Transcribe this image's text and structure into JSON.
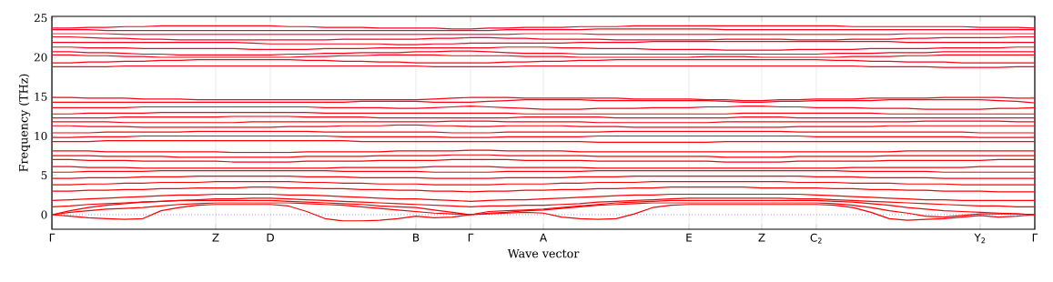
{
  "chart_data": {
    "type": "line",
    "xlabel": "Wave vector",
    "ylabel": "Frequency (THz)",
    "categories": [
      "Γ",
      null,
      null,
      null,
      null,
      null,
      null,
      null,
      null,
      "Z",
      null,
      null,
      "D",
      null,
      null,
      null,
      null,
      null,
      null,
      null,
      "B",
      null,
      null,
      "Γ",
      null,
      null,
      null,
      "A",
      null,
      null,
      null,
      null,
      null,
      null,
      null,
      "E",
      null,
      null,
      null,
      "Z",
      null,
      null,
      "C$_{2}$",
      null,
      null,
      null,
      null,
      null,
      null,
      null,
      null,
      "Y$_{2}$",
      null,
      null,
      "Γ"
    ],
    "ylim": [
      -1.85,
      25.2
    ],
    "yticks": [
      0,
      5,
      10,
      15,
      20,
      25
    ],
    "grid": "x",
    "ref_lines": [
      {
        "axis": "y",
        "value": 0,
        "color": "#0000ff",
        "line_style": "dotted"
      }
    ],
    "series": [
      {
        "color": "#ff0000",
        "values": [
          0,
          -0.2,
          -0.4,
          -0.5,
          -0.6,
          -0.5,
          0.5,
          0.9,
          1.2,
          1.3,
          1.3,
          1.3,
          1.3,
          1.1,
          0.4,
          -0.5,
          -0.8,
          -0.8,
          -0.7,
          -0.5,
          -0.2,
          -0.4,
          -0.3,
          0,
          0.1,
          0.2,
          0.3,
          0.2,
          -0.3,
          -0.5,
          -0.6,
          -0.5,
          0.1,
          0.9,
          1.2,
          1.3,
          1.3,
          1.3,
          1.3,
          1.3,
          1.3,
          1.3,
          1.3,
          1.2,
          0.9,
          0.3,
          -0.5,
          -0.7,
          -0.6,
          -0.5,
          -0.3,
          -0.1,
          -0.3,
          -0.2,
          0
        ]
      },
      {
        "color": "#ff0001",
        "values": [
          0,
          0.3,
          0.5,
          0.7,
          0.8,
          0.9,
          1.1,
          1.3,
          1.4,
          1.5,
          1.5,
          1.5,
          1.5,
          1.5,
          1.4,
          1.3,
          1.2,
          1.0,
          0.8,
          0.6,
          0.4,
          0.2,
          0.1,
          0,
          0.2,
          0.3,
          0.5,
          0.6,
          0.8,
          1.0,
          1.2,
          1.3,
          1.4,
          1.5,
          1.5,
          1.5,
          1.5,
          1.5,
          1.5,
          1.5,
          1.5,
          1.5,
          1.5,
          1.4,
          1.2,
          0.9,
          0.5,
          0.2,
          -0.2,
          -0.3,
          -0.1,
          0.1,
          0.1,
          0.1,
          0
        ]
      },
      {
        "color": "#ff0002",
        "values": [
          0,
          0.5,
          0.9,
          1.2,
          1.4,
          1.6,
          1.7,
          1.8,
          1.8,
          1.8,
          1.8,
          1.8,
          1.8,
          1.7,
          1.6,
          1.5,
          1.4,
          1.3,
          1.1,
          1.0,
          0.9,
          0.6,
          0.3,
          0,
          0.4,
          0.5,
          0.6,
          0.7,
          0.9,
          1.1,
          1.3,
          1.5,
          1.6,
          1.7,
          1.8,
          1.8,
          1.8,
          1.8,
          1.8,
          1.8,
          1.8,
          1.8,
          1.8,
          1.7,
          1.6,
          1.4,
          1.2,
          0.9,
          0.7,
          0.5,
          0.4,
          0.3,
          0.2,
          0.1,
          0
        ]
      },
      {
        "color": "#ff0003",
        "values": [
          1.0,
          1.1,
          1.3,
          1.4,
          1.5,
          1.6,
          1.7,
          1.8,
          1.9,
          2.0,
          2.0,
          2.1,
          2.1,
          2.0,
          1.9,
          1.8,
          1.7,
          1.6,
          1.5,
          1.4,
          1.3,
          1.2,
          1.1,
          1.0,
          1.1,
          1.1,
          1.2,
          1.2,
          1.3,
          1.4,
          1.6,
          1.7,
          1.8,
          1.9,
          2.0,
          2.1,
          2.1,
          2.1,
          2.1,
          2.1,
          2.1,
          2.0,
          2.0,
          1.9,
          1.8,
          1.7,
          1.6,
          1.5,
          1.4,
          1.3,
          1.2,
          1.1,
          1.1,
          1.0,
          1.0
        ]
      },
      {
        "color": "#ff0004",
        "values": [
          1.8,
          1.9,
          2.0,
          2.1,
          2.2,
          2.3,
          2.4,
          2.5,
          2.5,
          2.6,
          2.6,
          2.6,
          2.6,
          2.5,
          2.5,
          2.4,
          2.3,
          2.2,
          2.1,
          2.0,
          2.0,
          1.9,
          1.8,
          1.7,
          1.8,
          1.9,
          1.9,
          2.0,
          2.1,
          2.2,
          2.3,
          2.4,
          2.5,
          2.5,
          2.6,
          2.6,
          2.6,
          2.6,
          2.6,
          2.6,
          2.6,
          2.6,
          2.5,
          2.4,
          2.3,
          2.2,
          2.1,
          2.0,
          1.9,
          1.9,
          1.8,
          1.8,
          1.8,
          1.8,
          1.8
        ]
      },
      {
        "color": "#ff0005",
        "values": [
          3.0,
          3.0,
          3.1,
          3.1,
          3.2,
          3.2,
          3.3,
          3.3,
          3.4,
          3.4,
          3.4,
          3.5,
          3.5,
          3.4,
          3.4,
          3.3,
          3.3,
          3.2,
          3.2,
          3.1,
          3.1,
          3.0,
          3.0,
          2.9,
          3.0,
          3.0,
          3.1,
          3.1,
          3.2,
          3.2,
          3.3,
          3.3,
          3.4,
          3.4,
          3.5,
          3.5,
          3.5,
          3.5,
          3.5,
          3.4,
          3.4,
          3.4,
          3.4,
          3.3,
          3.3,
          3.2,
          3.2,
          3.1,
          3.1,
          3.0,
          3.0,
          3.0,
          2.9,
          2.9,
          2.9
        ]
      },
      {
        "color": "#ff0006",
        "values": [
          3.8,
          3.8,
          3.9,
          3.9,
          4.0,
          4.0,
          4.1,
          4.1,
          4.1,
          4.2,
          4.2,
          4.2,
          4.2,
          4.2,
          4.1,
          4.1,
          4.0,
          4.0,
          3.9,
          3.9,
          3.9,
          3.8,
          3.8,
          3.8,
          3.8,
          3.9,
          3.9,
          3.9,
          4.0,
          4.0,
          4.1,
          4.1,
          4.1,
          4.2,
          4.2,
          4.2,
          4.2,
          4.2,
          4.2,
          4.2,
          4.2,
          4.1,
          4.1,
          4.1,
          4.0,
          4.0,
          4.0,
          3.9,
          3.9,
          3.9,
          3.8,
          3.8,
          3.8,
          3.8,
          3.8
        ]
      },
      {
        "color": "#ff0007",
        "values": [
          4.6,
          4.6,
          4.7,
          4.7,
          4.7,
          4.8,
          4.8,
          4.8,
          4.9,
          4.9,
          4.9,
          4.9,
          4.9,
          4.9,
          4.8,
          4.8,
          4.8,
          4.7,
          4.7,
          4.7,
          4.7,
          4.6,
          4.6,
          4.6,
          4.6,
          4.7,
          4.7,
          4.7,
          4.7,
          4.8,
          4.8,
          4.8,
          4.9,
          4.9,
          4.9,
          4.9,
          4.9,
          4.9,
          4.9,
          4.9,
          4.9,
          4.9,
          4.8,
          4.8,
          4.8,
          4.7,
          4.7,
          4.7,
          4.7,
          4.6,
          4.6,
          4.6,
          4.6,
          4.6,
          4.6
        ]
      },
      {
        "color": "#ff0008",
        "values": [
          5.4,
          5.4,
          5.5,
          5.5,
          5.5,
          5.5,
          5.6,
          5.6,
          5.6,
          5.6,
          5.6,
          5.6,
          5.6,
          5.6,
          5.6,
          5.6,
          5.5,
          5.5,
          5.5,
          5.5,
          5.5,
          5.4,
          5.4,
          5.4,
          5.4,
          5.5,
          5.5,
          5.5,
          5.5,
          5.5,
          5.6,
          5.6,
          5.6,
          5.6,
          5.6,
          5.6,
          5.6,
          5.6,
          5.6,
          5.6,
          5.6,
          5.6,
          5.6,
          5.6,
          5.5,
          5.5,
          5.5,
          5.5,
          5.5,
          5.4,
          5.4,
          5.4,
          5.4,
          5.4,
          5.4
        ]
      },
      {
        "color": "#ff0009",
        "values": [
          6.1,
          6.1,
          6.0,
          6.0,
          6.0,
          5.9,
          5.9,
          5.9,
          5.9,
          5.9,
          5.9,
          5.9,
          5.9,
          5.9,
          5.9,
          5.9,
          6.0,
          6.0,
          6.0,
          6.0,
          6.0,
          6.1,
          6.1,
          6.1,
          6.1,
          6.0,
          6.0,
          6.0,
          6.0,
          6.0,
          5.9,
          5.9,
          5.9,
          5.9,
          5.9,
          5.9,
          5.9,
          5.9,
          5.9,
          5.9,
          5.9,
          5.9,
          5.9,
          5.9,
          6.0,
          6.0,
          6.0,
          6.0,
          6.0,
          6.0,
          6.0,
          6.1,
          6.1,
          6.1,
          6.1
        ]
      },
      {
        "color": "#ff000a",
        "values": [
          7.0,
          7.0,
          6.9,
          6.9,
          6.9,
          6.8,
          6.8,
          6.8,
          6.8,
          6.8,
          6.7,
          6.7,
          6.7,
          6.7,
          6.8,
          6.8,
          6.8,
          6.8,
          6.9,
          6.9,
          6.9,
          6.9,
          7.0,
          7.0,
          7.0,
          7.0,
          6.9,
          6.9,
          6.9,
          6.9,
          6.8,
          6.8,
          6.8,
          6.8,
          6.8,
          6.8,
          6.8,
          6.7,
          6.7,
          6.7,
          6.7,
          6.8,
          6.8,
          6.8,
          6.8,
          6.8,
          6.9,
          6.9,
          6.9,
          6.9,
          6.9,
          6.9,
          7.0,
          7.0,
          7.0
        ]
      },
      {
        "color": "#ff000b",
        "values": [
          7.5,
          7.5,
          7.5,
          7.4,
          7.4,
          7.4,
          7.4,
          7.3,
          7.3,
          7.3,
          7.3,
          7.3,
          7.3,
          7.3,
          7.4,
          7.4,
          7.4,
          7.4,
          7.5,
          7.5,
          7.5,
          7.5,
          7.6,
          7.6,
          7.6,
          7.5,
          7.5,
          7.5,
          7.5,
          7.5,
          7.4,
          7.4,
          7.4,
          7.4,
          7.4,
          7.4,
          7.4,
          7.3,
          7.3,
          7.3,
          7.3,
          7.4,
          7.4,
          7.4,
          7.4,
          7.4,
          7.5,
          7.5,
          7.5,
          7.5,
          7.5,
          7.5,
          7.5,
          7.5,
          7.5
        ]
      },
      {
        "color": "#ff000c",
        "values": [
          8.1,
          8.1,
          8.1,
          8.0,
          8.0,
          8.0,
          8.0,
          8.0,
          8.0,
          8.0,
          7.9,
          7.9,
          7.9,
          7.9,
          8.0,
          8.0,
          8.0,
          8.0,
          8.0,
          8.1,
          8.1,
          8.1,
          8.1,
          8.2,
          8.2,
          8.1,
          8.1,
          8.1,
          8.1,
          8.0,
          8.0,
          8.0,
          8.0,
          8.0,
          8.0,
          8.0,
          8.0,
          8.0,
          8.0,
          8.0,
          8.0,
          8.0,
          8.0,
          8.0,
          8.0,
          8.0,
          8.0,
          8.1,
          8.1,
          8.1,
          8.1,
          8.1,
          8.1,
          8.1,
          8.1
        ]
      },
      {
        "color": "#ff000d",
        "values": [
          9.3,
          9.3,
          9.3,
          9.4,
          9.4,
          9.4,
          9.4,
          9.4,
          9.4,
          9.4,
          9.4,
          9.4,
          9.4,
          9.4,
          9.4,
          9.4,
          9.4,
          9.3,
          9.3,
          9.3,
          9.3,
          9.3,
          9.3,
          9.3,
          9.3,
          9.3,
          9.3,
          9.3,
          9.3,
          9.3,
          9.2,
          9.2,
          9.2,
          9.2,
          9.2,
          9.2,
          9.2,
          9.3,
          9.3,
          9.3,
          9.3,
          9.3,
          9.3,
          9.3,
          9.3,
          9.3,
          9.3,
          9.3,
          9.3,
          9.3,
          9.3,
          9.3,
          9.3,
          9.3,
          9.3
        ]
      },
      {
        "color": "#ff000e",
        "values": [
          9.8,
          9.8,
          9.9,
          9.9,
          9.9,
          10.0,
          10.0,
          10.0,
          10.0,
          10.0,
          10.0,
          10.0,
          10.0,
          10.0,
          10.0,
          10.0,
          9.9,
          9.9,
          9.9,
          9.9,
          9.9,
          9.9,
          9.8,
          9.8,
          9.8,
          9.9,
          9.9,
          9.9,
          9.9,
          9.9,
          10.0,
          10.0,
          10.0,
          10.0,
          10.0,
          10.0,
          10.0,
          10.0,
          10.0,
          10.0,
          10.0,
          10.0,
          9.9,
          9.9,
          9.9,
          9.9,
          9.9,
          9.9,
          9.9,
          9.9,
          9.9,
          9.8,
          9.8,
          9.8,
          9.8
        ]
      },
      {
        "color": "#ff000f",
        "values": [
          10.4,
          10.4,
          10.4,
          10.5,
          10.5,
          10.5,
          10.5,
          10.5,
          10.6,
          10.6,
          10.6,
          10.6,
          10.6,
          10.6,
          10.6,
          10.5,
          10.5,
          10.5,
          10.5,
          10.5,
          10.5,
          10.5,
          10.4,
          10.4,
          10.4,
          10.5,
          10.5,
          10.5,
          10.5,
          10.5,
          10.5,
          10.6,
          10.6,
          10.6,
          10.6,
          10.6,
          10.6,
          10.6,
          10.6,
          10.6,
          10.6,
          10.5,
          10.5,
          10.5,
          10.5,
          10.5,
          10.5,
          10.5,
          10.5,
          10.5,
          10.5,
          10.4,
          10.4,
          10.4,
          10.4
        ]
      },
      {
        "color": "#ff0010",
        "values": [
          11.3,
          11.3,
          11.2,
          11.2,
          11.2,
          11.1,
          11.1,
          11.1,
          11.1,
          11.1,
          11.1,
          11.1,
          11.1,
          11.2,
          11.2,
          11.2,
          11.3,
          11.3,
          11.3,
          11.4,
          11.4,
          11.3,
          11.3,
          11.2,
          11.2,
          11.3,
          11.3,
          11.3,
          11.3,
          11.2,
          11.2,
          11.2,
          11.1,
          11.1,
          11.1,
          11.1,
          11.1,
          11.1,
          11.1,
          11.1,
          11.1,
          11.2,
          11.2,
          11.2,
          11.2,
          11.2,
          11.3,
          11.3,
          11.3,
          11.3,
          11.3,
          11.3,
          11.3,
          11.3,
          11.3
        ]
      },
      {
        "color": "#ff0011",
        "values": [
          11.8,
          11.8,
          11.8,
          11.8,
          11.7,
          11.7,
          11.7,
          11.7,
          11.7,
          11.7,
          11.7,
          11.8,
          11.8,
          11.8,
          11.8,
          11.8,
          11.8,
          11.8,
          11.8,
          11.8,
          11.8,
          11.8,
          11.9,
          11.9,
          11.9,
          11.8,
          11.8,
          11.8,
          11.8,
          11.8,
          11.7,
          11.7,
          11.7,
          11.7,
          11.7,
          11.7,
          11.7,
          11.8,
          11.8,
          11.8,
          11.8,
          11.8,
          11.8,
          11.8,
          11.8,
          11.8,
          11.8,
          11.8,
          11.9,
          11.9,
          11.9,
          11.9,
          11.9,
          11.8,
          11.8
        ]
      },
      {
        "color": "#ff0012",
        "values": [
          12.3,
          12.3,
          12.3,
          12.3,
          12.4,
          12.4,
          12.4,
          12.4,
          12.4,
          12.4,
          12.5,
          12.5,
          12.5,
          12.5,
          12.4,
          12.4,
          12.4,
          12.4,
          12.3,
          12.3,
          12.3,
          12.3,
          12.3,
          12.3,
          12.3,
          12.3,
          12.4,
          12.4,
          12.4,
          12.4,
          12.4,
          12.3,
          12.3,
          12.3,
          12.3,
          12.3,
          12.3,
          12.3,
          12.4,
          12.4,
          12.4,
          12.3,
          12.3,
          12.3,
          12.3,
          12.3,
          12.3,
          12.3,
          12.3,
          12.3,
          12.3,
          12.3,
          12.3,
          12.3,
          12.3
        ]
      },
      {
        "color": "#ff0013",
        "values": [
          12.8,
          12.8,
          12.9,
          12.9,
          12.9,
          12.9,
          13.0,
          13.0,
          13.0,
          13.0,
          13.0,
          13.0,
          13.0,
          13.0,
          13.0,
          12.9,
          12.9,
          12.9,
          12.9,
          12.9,
          12.9,
          12.9,
          12.9,
          12.9,
          12.9,
          12.9,
          12.8,
          12.8,
          12.8,
          12.8,
          12.8,
          12.8,
          12.8,
          12.8,
          12.8,
          12.8,
          12.8,
          12.8,
          12.9,
          12.9,
          12.9,
          12.9,
          12.9,
          12.9,
          12.9,
          12.9,
          12.8,
          12.8,
          12.8,
          12.8,
          12.8,
          12.8,
          12.8,
          12.8,
          12.8
        ]
      },
      {
        "color": "#ff0014",
        "values": [
          13.6,
          13.6,
          13.6,
          13.6,
          13.6,
          13.7,
          13.7,
          13.7,
          13.7,
          13.7,
          13.7,
          13.7,
          13.7,
          13.7,
          13.7,
          13.6,
          13.6,
          13.6,
          13.6,
          13.5,
          13.5,
          13.6,
          13.7,
          13.8,
          13.7,
          13.6,
          13.5,
          13.4,
          13.4,
          13.4,
          13.5,
          13.5,
          13.5,
          13.6,
          13.6,
          13.6,
          13.7,
          13.7,
          13.8,
          13.8,
          13.7,
          13.7,
          13.6,
          13.6,
          13.6,
          13.5,
          13.5,
          13.5,
          13.4,
          13.4,
          13.4,
          13.4,
          13.5,
          13.5,
          13.6
        ]
      },
      {
        "color": "#ff0015",
        "values": [
          14.3,
          14.3,
          14.3,
          14.3,
          14.3,
          14.3,
          14.3,
          14.3,
          14.3,
          14.3,
          14.3,
          14.3,
          14.3,
          14.3,
          14.3,
          14.3,
          14.3,
          14.4,
          14.4,
          14.4,
          14.4,
          14.3,
          14.3,
          14.3,
          14.4,
          14.5,
          14.6,
          14.6,
          14.6,
          14.6,
          14.5,
          14.5,
          14.5,
          14.5,
          14.5,
          14.5,
          14.5,
          14.4,
          14.3,
          14.3,
          14.4,
          14.4,
          14.5,
          14.5,
          14.5,
          14.5,
          14.6,
          14.6,
          14.6,
          14.6,
          14.6,
          14.6,
          14.5,
          14.4,
          14.2
        ]
      },
      {
        "color": "#ff0016",
        "values": [
          14.9,
          14.9,
          14.8,
          14.8,
          14.8,
          14.7,
          14.7,
          14.7,
          14.6,
          14.6,
          14.6,
          14.6,
          14.6,
          14.6,
          14.6,
          14.6,
          14.6,
          14.6,
          14.6,
          14.6,
          14.6,
          14.7,
          14.8,
          14.9,
          14.9,
          14.9,
          14.8,
          14.8,
          14.8,
          14.8,
          14.8,
          14.8,
          14.7,
          14.7,
          14.7,
          14.7,
          14.6,
          14.6,
          14.5,
          14.5,
          14.6,
          14.6,
          14.7,
          14.7,
          14.7,
          14.8,
          14.8,
          14.8,
          14.8,
          14.9,
          14.9,
          14.9,
          14.9,
          14.8,
          14.8
        ]
      },
      {
        "color": "#ff0017",
        "values": [
          18.8,
          18.8,
          18.8,
          18.8,
          18.9,
          18.9,
          18.9,
          18.9,
          18.9,
          18.9,
          18.9,
          18.9,
          18.9,
          18.9,
          18.9,
          18.9,
          18.9,
          18.9,
          18.9,
          18.9,
          18.9,
          18.8,
          18.8,
          18.8,
          18.8,
          18.8,
          18.9,
          18.9,
          18.9,
          18.9,
          18.9,
          18.9,
          18.9,
          18.9,
          18.9,
          18.9,
          18.9,
          18.9,
          18.9,
          18.9,
          18.9,
          18.9,
          18.9,
          18.9,
          18.9,
          18.8,
          18.8,
          18.8,
          18.8,
          18.7,
          18.7,
          18.7,
          18.7,
          18.8,
          18.8
        ]
      },
      {
        "color": "#ff0018",
        "values": [
          19.3,
          19.3,
          19.4,
          19.4,
          19.5,
          19.5,
          19.6,
          19.6,
          19.7,
          19.7,
          19.7,
          19.7,
          19.7,
          19.7,
          19.6,
          19.6,
          19.5,
          19.5,
          19.4,
          19.4,
          19.3,
          19.3,
          19.3,
          19.3,
          19.3,
          19.4,
          19.4,
          19.5,
          19.5,
          19.6,
          19.6,
          19.7,
          19.7,
          19.7,
          19.7,
          19.7,
          19.7,
          19.7,
          19.7,
          19.7,
          19.7,
          19.7,
          19.7,
          19.6,
          19.6,
          19.5,
          19.5,
          19.4,
          19.4,
          19.4,
          19.3,
          19.3,
          19.3,
          19.3,
          19.3
        ]
      },
      {
        "color": "#ff0019",
        "values": [
          20.3,
          20.3,
          20.2,
          20.2,
          20.1,
          20.1,
          20.0,
          20.0,
          20.0,
          20.0,
          20.0,
          20.0,
          20.0,
          20.0,
          20.1,
          20.1,
          20.2,
          20.2,
          20.3,
          20.3,
          20.3,
          20.3,
          20.2,
          20.2,
          20.2,
          20.2,
          20.1,
          20.1,
          20.1,
          20.0,
          20.0,
          20.0,
          20.0,
          20.0,
          20.0,
          20.0,
          20.1,
          20.1,
          20.1,
          20.0,
          20.0,
          20.0,
          20.0,
          20.0,
          20.1,
          20.1,
          20.1,
          20.2,
          20.2,
          20.3,
          20.3,
          20.3,
          20.3,
          20.3,
          20.3
        ]
      },
      {
        "color": "#ff001a",
        "values": [
          20.7,
          20.7,
          20.6,
          20.6,
          20.5,
          20.4,
          20.4,
          20.3,
          20.3,
          20.3,
          20.3,
          20.3,
          20.3,
          20.4,
          20.4,
          20.5,
          20.5,
          20.6,
          20.6,
          20.6,
          20.7,
          20.7,
          20.8,
          20.8,
          20.7,
          20.6,
          20.5,
          20.5,
          20.5,
          20.4,
          20.4,
          20.4,
          20.4,
          20.4,
          20.4,
          20.4,
          20.4,
          20.4,
          20.4,
          20.4,
          20.4,
          20.4,
          20.4,
          20.5,
          20.5,
          20.5,
          20.6,
          20.6,
          20.6,
          20.7,
          20.7,
          20.7,
          20.7,
          20.7,
          20.7
        ]
      },
      {
        "color": "#ff001b",
        "values": [
          21.3,
          21.3,
          21.2,
          21.2,
          21.2,
          21.1,
          21.1,
          21.1,
          21.1,
          21.1,
          21.1,
          21.0,
          21.0,
          21.0,
          21.0,
          21.1,
          21.1,
          21.1,
          21.2,
          21.2,
          21.2,
          21.2,
          21.2,
          21.2,
          21.2,
          21.3,
          21.3,
          21.3,
          21.2,
          21.2,
          21.1,
          21.1,
          21.1,
          21.0,
          21.0,
          21.0,
          21.0,
          20.9,
          20.9,
          20.9,
          20.9,
          21.0,
          21.0,
          21.0,
          21.0,
          21.1,
          21.1,
          21.1,
          21.1,
          21.2,
          21.2,
          21.2,
          21.2,
          21.3,
          21.3
        ]
      },
      {
        "color": "#ff001c",
        "values": [
          21.9,
          21.9,
          21.9,
          21.9,
          21.9,
          21.9,
          21.9,
          21.9,
          21.9,
          21.9,
          21.9,
          21.8,
          21.7,
          21.7,
          21.7,
          21.7,
          21.7,
          21.7,
          21.7,
          21.6,
          21.6,
          21.7,
          21.7,
          21.8,
          21.8,
          21.8,
          21.8,
          21.8,
          21.8,
          21.9,
          21.9,
          21.9,
          21.9,
          22.0,
          22.0,
          22.0,
          22.0,
          22.0,
          22.0,
          22.0,
          22.0,
          22.0,
          22.0,
          22.0,
          22.0,
          22.0,
          22.0,
          21.9,
          21.9,
          21.9,
          21.9,
          21.9,
          21.9,
          21.9,
          21.9
        ]
      },
      {
        "color": "#ff001d",
        "values": [
          22.6,
          22.6,
          22.5,
          22.4,
          22.4,
          22.3,
          22.3,
          22.2,
          22.2,
          22.2,
          22.2,
          22.2,
          22.2,
          22.2,
          22.2,
          22.2,
          22.3,
          22.3,
          22.3,
          22.3,
          22.3,
          22.4,
          22.4,
          22.5,
          22.5,
          22.4,
          22.4,
          22.3,
          22.3,
          22.3,
          22.3,
          22.2,
          22.2,
          22.2,
          22.2,
          22.2,
          22.2,
          22.3,
          22.3,
          22.3,
          22.3,
          22.2,
          22.2,
          22.2,
          22.3,
          22.3,
          22.3,
          22.4,
          22.4,
          22.5,
          22.5,
          22.5,
          22.5,
          22.6,
          22.6
        ]
      },
      {
        "color": "#ff001e",
        "values": [
          23.0,
          23.0,
          23.0,
          23.0,
          22.9,
          22.9,
          22.9,
          22.9,
          22.9,
          22.9,
          22.9,
          22.9,
          22.9,
          22.9,
          22.9,
          22.9,
          22.9,
          22.9,
          22.9,
          22.9,
          22.9,
          22.9,
          22.9,
          22.9,
          22.9,
          22.9,
          23.0,
          23.0,
          23.0,
          23.0,
          22.9,
          22.9,
          22.9,
          22.9,
          22.9,
          22.9,
          22.9,
          22.9,
          22.9,
          22.9,
          22.9,
          22.9,
          22.9,
          22.9,
          22.9,
          22.9,
          22.9,
          23.0,
          23.0,
          23.0,
          23.0,
          23.0,
          23.0,
          23.0,
          23.0
        ]
      },
      {
        "color": "#ff001f",
        "values": [
          23.5,
          23.5,
          23.5,
          23.4,
          23.4,
          23.4,
          23.4,
          23.4,
          23.4,
          23.4,
          23.4,
          23.4,
          23.4,
          23.4,
          23.4,
          23.4,
          23.4,
          23.4,
          23.4,
          23.4,
          23.4,
          23.4,
          23.4,
          23.4,
          23.4,
          23.5,
          23.5,
          23.5,
          23.5,
          23.5,
          23.6,
          23.6,
          23.6,
          23.6,
          23.6,
          23.6,
          23.6,
          23.5,
          23.5,
          23.5,
          23.5,
          23.5,
          23.5,
          23.5,
          23.5,
          23.5,
          23.5,
          23.5,
          23.5,
          23.5,
          23.5,
          23.5,
          23.5,
          23.5,
          23.5
        ]
      },
      {
        "color": "#ff0020",
        "values": [
          23.7,
          23.7,
          23.8,
          23.8,
          23.9,
          23.9,
          24.0,
          24.0,
          24.0,
          24.0,
          24.0,
          24.0,
          24.0,
          23.9,
          23.9,
          23.8,
          23.8,
          23.8,
          23.7,
          23.7,
          23.7,
          23.7,
          23.6,
          23.6,
          23.7,
          23.7,
          23.8,
          23.8,
          23.8,
          23.9,
          23.9,
          23.9,
          24.0,
          24.0,
          24.0,
          24.0,
          24.0,
          24.0,
          24.0,
          24.0,
          24.0,
          24.0,
          24.0,
          24.0,
          23.9,
          23.9,
          23.9,
          23.9,
          23.9,
          23.9,
          23.9,
          23.8,
          23.8,
          23.8,
          23.7
        ]
      }
    ]
  }
}
